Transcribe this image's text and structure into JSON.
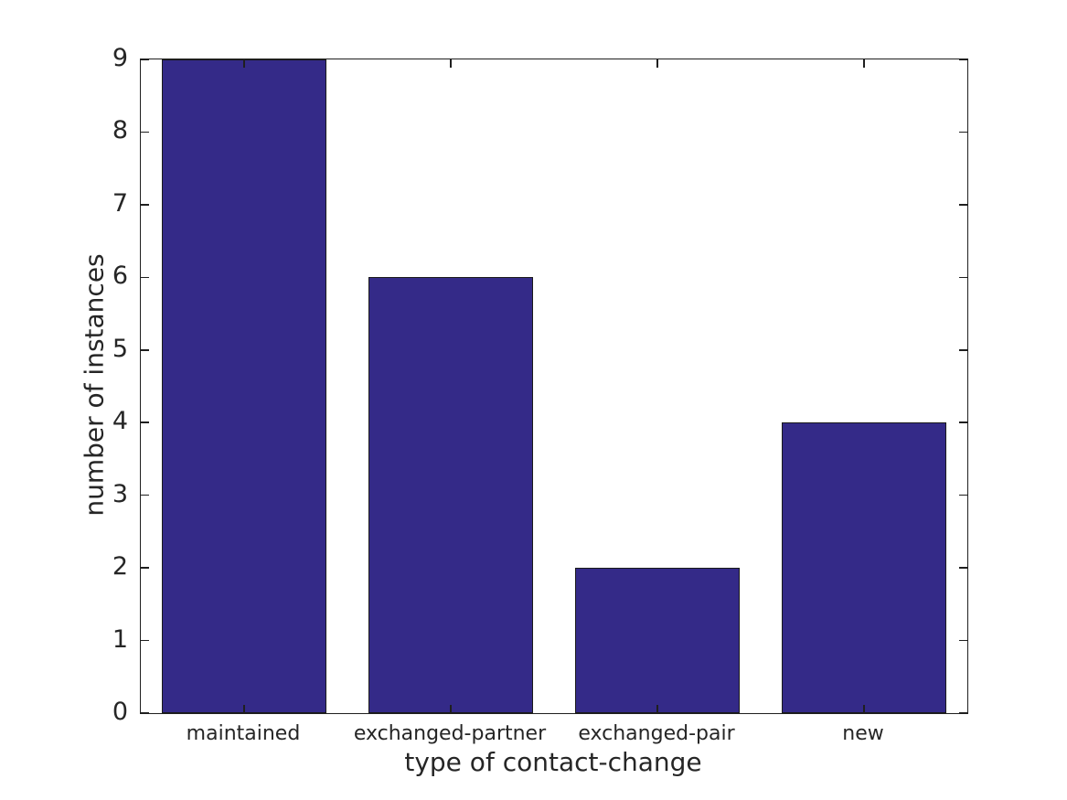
{
  "chart_data": {
    "type": "bar",
    "categories": [
      "maintained",
      "exchanged-partner",
      "exchanged-pair",
      "new"
    ],
    "values": [
      9,
      6,
      2,
      4
    ],
    "title": "",
    "xlabel": "type of contact-change",
    "ylabel": "number of instances",
    "ylim": [
      0,
      9
    ],
    "yticks": [
      0,
      1,
      2,
      3,
      4,
      5,
      6,
      7,
      8,
      9
    ],
    "bar_width_fraction": 0.8,
    "bar_color": "#342a88",
    "bar_edge_color": "#1a1a1a",
    "axis_color": "#1f1f1f",
    "text_color": "#262626",
    "background_color": "#ffffff",
    "grid": false,
    "legend": null,
    "tick_direction": "in"
  }
}
